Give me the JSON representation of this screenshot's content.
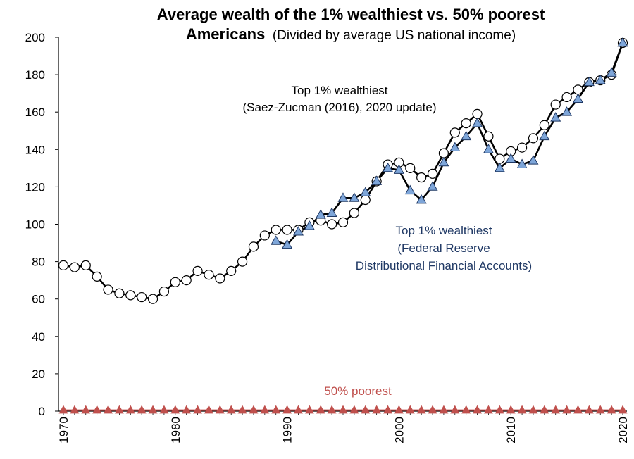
{
  "chart_data": {
    "type": "line",
    "title": "Average wealth of the 1% wealthiest vs. 50% poorest",
    "title_line2_bold": "Americans",
    "subtitle": "(Divided by average US national income)",
    "xlabel": "",
    "ylabel": "",
    "xlim": [
      1970,
      2020
    ],
    "ylim": [
      0,
      200
    ],
    "yticks": [
      0,
      20,
      40,
      60,
      80,
      100,
      120,
      140,
      160,
      180,
      200
    ],
    "xticks": [
      1970,
      1980,
      1990,
      2000,
      2010,
      2020
    ],
    "grid": false,
    "legend": "none",
    "annotations": {
      "saez_line1": "Top 1% wealthiest",
      "saez_line2": "(Saez-Zucman (2016), 2020 update)",
      "fed_line1": "Top 1% wealthiest",
      "fed_line2": "(Federal Reserve",
      "fed_line3": "Distributional Financial Accounts)",
      "bottom": "50% poorest"
    },
    "colors": {
      "saez_marker_fill": "#ffffff",
      "fed_marker_fill": "#7ea6d9",
      "bottom_marker": "#c0504d",
      "fed_text": "#1f3864",
      "bottom_text": "#c0504d",
      "line": "#000000"
    },
    "series": [
      {
        "marker": "circle",
        "x": [
          1970,
          1971,
          1972,
          1973,
          1974,
          1975,
          1976,
          1977,
          1978,
          1979,
          1980,
          1981,
          1982,
          1983,
          1984,
          1985,
          1986,
          1987,
          1988,
          1989,
          1990,
          1991,
          1992,
          1993,
          1994,
          1995,
          1996,
          1997,
          1998,
          1999,
          2000,
          2001,
          2002,
          2003,
          2004,
          2005,
          2006,
          2007,
          2008,
          2009,
          2010,
          2011,
          2012,
          2013,
          2014,
          2015,
          2016,
          2017,
          2018,
          2019,
          2020
        ],
        "values": [
          78,
          77,
          78,
          72,
          65,
          63,
          62,
          61,
          60,
          64,
          69,
          70,
          75,
          73,
          71,
          75,
          80,
          88,
          94,
          97,
          97,
          97,
          101,
          102,
          100,
          101,
          106,
          113,
          123,
          132,
          133,
          130,
          125,
          127,
          138,
          149,
          154,
          159,
          147,
          135,
          139,
          141,
          146,
          153,
          164,
          168,
          172,
          176,
          177,
          180,
          197
        ]
      },
      {
        "marker": "triangle",
        "x": [
          1989,
          1990,
          1991,
          1992,
          1993,
          1994,
          1995,
          1996,
          1997,
          1998,
          1999,
          2000,
          2001,
          2002,
          2003,
          2004,
          2005,
          2006,
          2007,
          2008,
          2009,
          2010,
          2011,
          2012,
          2013,
          2014,
          2015,
          2016,
          2017,
          2018,
          2019,
          2020
        ],
        "values": [
          91,
          89,
          96,
          99,
          105,
          106,
          114,
          114,
          117,
          123,
          130,
          129,
          118,
          113,
          120,
          133,
          141,
          147,
          154,
          140,
          130,
          135,
          132,
          134,
          147,
          157,
          160,
          167,
          176,
          177,
          181,
          197
        ]
      },
      {
        "marker": "triangle",
        "x": [
          1970,
          1971,
          1972,
          1973,
          1974,
          1975,
          1976,
          1977,
          1978,
          1979,
          1980,
          1981,
          1982,
          1983,
          1984,
          1985,
          1986,
          1987,
          1988,
          1989,
          1990,
          1991,
          1992,
          1993,
          1994,
          1995,
          1996,
          1997,
          1998,
          1999,
          2000,
          2001,
          2002,
          2003,
          2004,
          2005,
          2006,
          2007,
          2008,
          2009,
          2010,
          2011,
          2012,
          2013,
          2014,
          2015,
          2016,
          2017,
          2018,
          2019,
          2020
        ],
        "values": [
          0.5,
          0.5,
          0.5,
          0.5,
          0.5,
          0.5,
          0.5,
          0.5,
          0.5,
          0.5,
          0.5,
          0.5,
          0.5,
          0.5,
          0.5,
          0.5,
          0.5,
          0.5,
          0.5,
          0.5,
          0.5,
          0.5,
          0.5,
          0.5,
          0.5,
          0.5,
          0.5,
          0.5,
          0.5,
          0.5,
          0.5,
          0.5,
          0.5,
          0.5,
          0.5,
          0.5,
          0.5,
          0.5,
          0.5,
          0.5,
          0.5,
          0.5,
          0.5,
          0.5,
          0.5,
          0.5,
          0.5,
          0.5,
          0.5,
          0.5,
          0.5
        ]
      }
    ]
  }
}
